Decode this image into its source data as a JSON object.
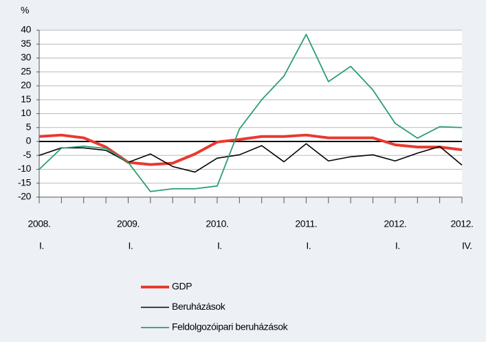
{
  "chart_data": {
    "type": "line",
    "y_label": "%",
    "categories": [
      [
        "2008.",
        "I."
      ],
      null,
      null,
      null,
      [
        "2009.",
        "I."
      ],
      null,
      null,
      null,
      [
        "2010.",
        "I."
      ],
      null,
      null,
      null,
      [
        "2011.",
        "I."
      ],
      null,
      null,
      null,
      [
        "2012.",
        "I."
      ],
      null,
      null,
      [
        "2012.",
        "IV."
      ]
    ],
    "series": [
      {
        "name": "GDP",
        "color": "#e8392f",
        "width": 4,
        "values": [
          1.8,
          2.3,
          1.3,
          -2,
          -7.5,
          -8.3,
          -7.8,
          -4.5,
          -0.2,
          0.7,
          1.8,
          1.8,
          2.3,
          1.3,
          1.3,
          1.3,
          -1.2,
          -2,
          -2,
          -3
        ]
      },
      {
        "name": "Beruházások",
        "color": "#000000",
        "width": 1.6,
        "values": [
          -5,
          -2.3,
          -2.3,
          -3.2,
          -7.5,
          -4.5,
          -9,
          -11,
          -6,
          -4.8,
          -1.5,
          -7.3,
          -0.8,
          -7,
          -5.5,
          -4.8,
          -7,
          -4.2,
          -1.8,
          -8.5
        ]
      },
      {
        "name": "Feldolgozóipari beruházások",
        "color": "#2a9d6e",
        "width": 1.8,
        "values": [
          -10,
          -2.4,
          -1.7,
          -2.5,
          -7.5,
          -18,
          -17,
          -17,
          -16,
          4.5,
          15,
          23.5,
          38.5,
          21.5,
          27,
          18.5,
          6.5,
          1.2,
          5.3,
          5
        ]
      }
    ],
    "ylim": [
      -20,
      40
    ],
    "yticks": [
      -20,
      -15,
      -10,
      -5,
      0,
      5,
      10,
      15,
      20,
      25,
      30,
      35,
      40
    ],
    "grid": true
  }
}
